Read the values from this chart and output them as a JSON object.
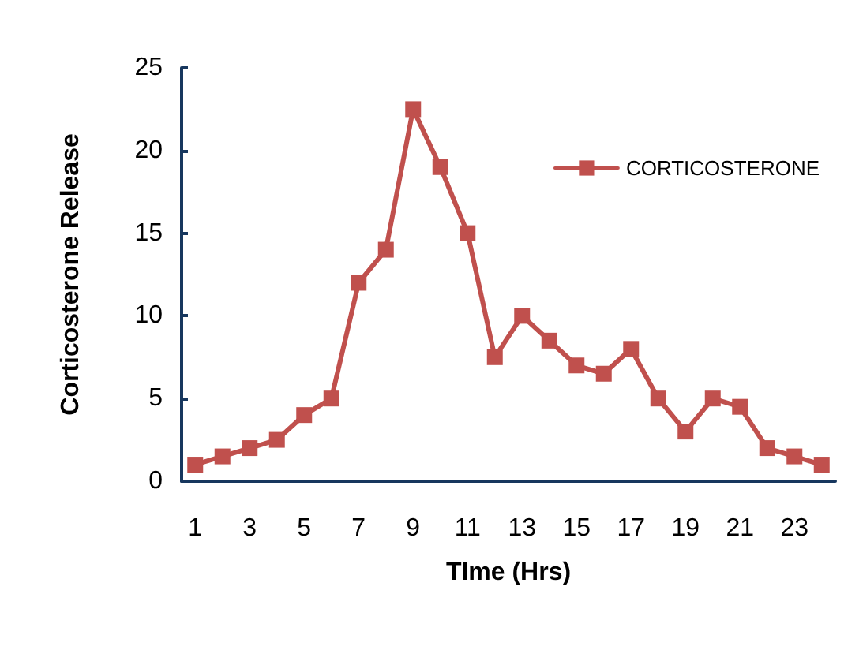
{
  "chart_data": {
    "type": "line",
    "xlabel": "TIme (Hrs)",
    "ylabel": "Corticosterone Release",
    "x": [
      1,
      2,
      3,
      4,
      5,
      6,
      7,
      8,
      9,
      10,
      11,
      12,
      13,
      14,
      15,
      16,
      17,
      18,
      19,
      20,
      21,
      22,
      23,
      24
    ],
    "xlim": [
      0.5,
      24.5
    ],
    "xticks": [
      1,
      3,
      5,
      7,
      9,
      11,
      13,
      15,
      17,
      19,
      21,
      23
    ],
    "series": [
      {
        "name": "CORTICOSTERONE",
        "color": "#c0504d",
        "values": [
          1,
          1.5,
          2,
          2.5,
          4,
          5,
          12,
          14,
          22.5,
          19,
          15,
          7.5,
          10,
          8.5,
          7,
          6.5,
          8,
          5,
          3,
          5,
          4.5,
          2,
          1.5,
          1
        ]
      }
    ],
    "ylim": [
      0,
      25
    ],
    "yticks": [
      0,
      5,
      10,
      15,
      20,
      25
    ],
    "grid": false,
    "legend": "top right",
    "marker": "square",
    "line_style": "solid"
  }
}
